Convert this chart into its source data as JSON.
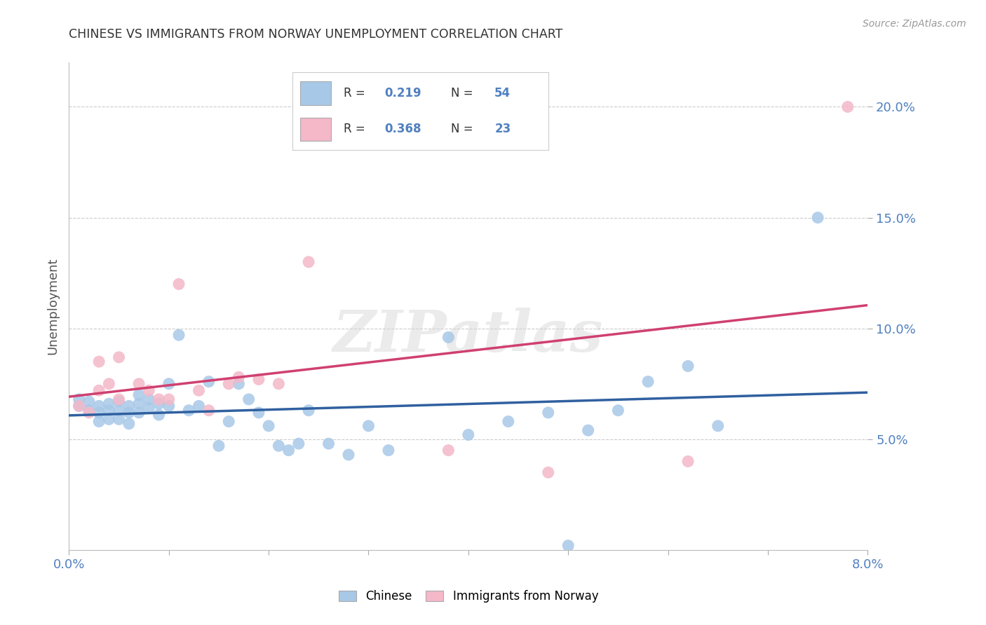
{
  "title": "CHINESE VS IMMIGRANTS FROM NORWAY UNEMPLOYMENT CORRELATION CHART",
  "source": "Source: ZipAtlas.com",
  "ylabel": "Unemployment",
  "watermark": "ZIPatlas",
  "legend_blue_r": "0.219",
  "legend_blue_n": "54",
  "legend_pink_r": "0.368",
  "legend_pink_n": "23",
  "blue_scatter_color": "#a8c8e8",
  "pink_scatter_color": "#f4b8c8",
  "blue_line_color": "#3060a0",
  "pink_line_color": "#d04070",
  "background_color": "#ffffff",
  "grid_color": "#cccccc",
  "tick_color": "#5080c0",
  "chinese_x": [
    0.001,
    0.001,
    0.002,
    0.002,
    0.003,
    0.003,
    0.003,
    0.004,
    0.004,
    0.004,
    0.005,
    0.005,
    0.005,
    0.006,
    0.006,
    0.006,
    0.007,
    0.007,
    0.007,
    0.008,
    0.008,
    0.009,
    0.009,
    0.01,
    0.01,
    0.011,
    0.012,
    0.013,
    0.014,
    0.015,
    0.016,
    0.017,
    0.018,
    0.019,
    0.02,
    0.021,
    0.022,
    0.023,
    0.024,
    0.026,
    0.028,
    0.03,
    0.032,
    0.038,
    0.04,
    0.044,
    0.048,
    0.05,
    0.052,
    0.055,
    0.058,
    0.062,
    0.065,
    0.075
  ],
  "chinese_y": [
    0.065,
    0.068,
    0.063,
    0.067,
    0.065,
    0.062,
    0.058,
    0.066,
    0.063,
    0.059,
    0.067,
    0.063,
    0.059,
    0.065,
    0.062,
    0.057,
    0.07,
    0.066,
    0.062,
    0.068,
    0.064,
    0.066,
    0.061,
    0.075,
    0.065,
    0.097,
    0.063,
    0.065,
    0.076,
    0.047,
    0.058,
    0.075,
    0.068,
    0.062,
    0.056,
    0.047,
    0.045,
    0.048,
    0.063,
    0.048,
    0.043,
    0.056,
    0.045,
    0.096,
    0.052,
    0.058,
    0.062,
    0.002,
    0.054,
    0.063,
    0.076,
    0.083,
    0.056,
    0.15
  ],
  "norway_x": [
    0.001,
    0.002,
    0.003,
    0.003,
    0.004,
    0.005,
    0.005,
    0.007,
    0.008,
    0.009,
    0.01,
    0.011,
    0.013,
    0.014,
    0.016,
    0.017,
    0.019,
    0.021,
    0.024,
    0.038,
    0.048,
    0.062,
    0.078
  ],
  "norway_y": [
    0.065,
    0.062,
    0.072,
    0.085,
    0.075,
    0.087,
    0.068,
    0.075,
    0.072,
    0.068,
    0.068,
    0.12,
    0.072,
    0.063,
    0.075,
    0.078,
    0.077,
    0.075,
    0.13,
    0.045,
    0.035,
    0.04,
    0.2
  ],
  "xlim": [
    0.0,
    0.08
  ],
  "ylim": [
    0.0,
    0.22
  ],
  "yticks": [
    0.05,
    0.1,
    0.15,
    0.2
  ],
  "ytick_labels": [
    "5.0%",
    "10.0%",
    "15.0%",
    "20.0%"
  ],
  "xtick_count": 9,
  "figsize": [
    14.06,
    8.92
  ],
  "dpi": 100
}
